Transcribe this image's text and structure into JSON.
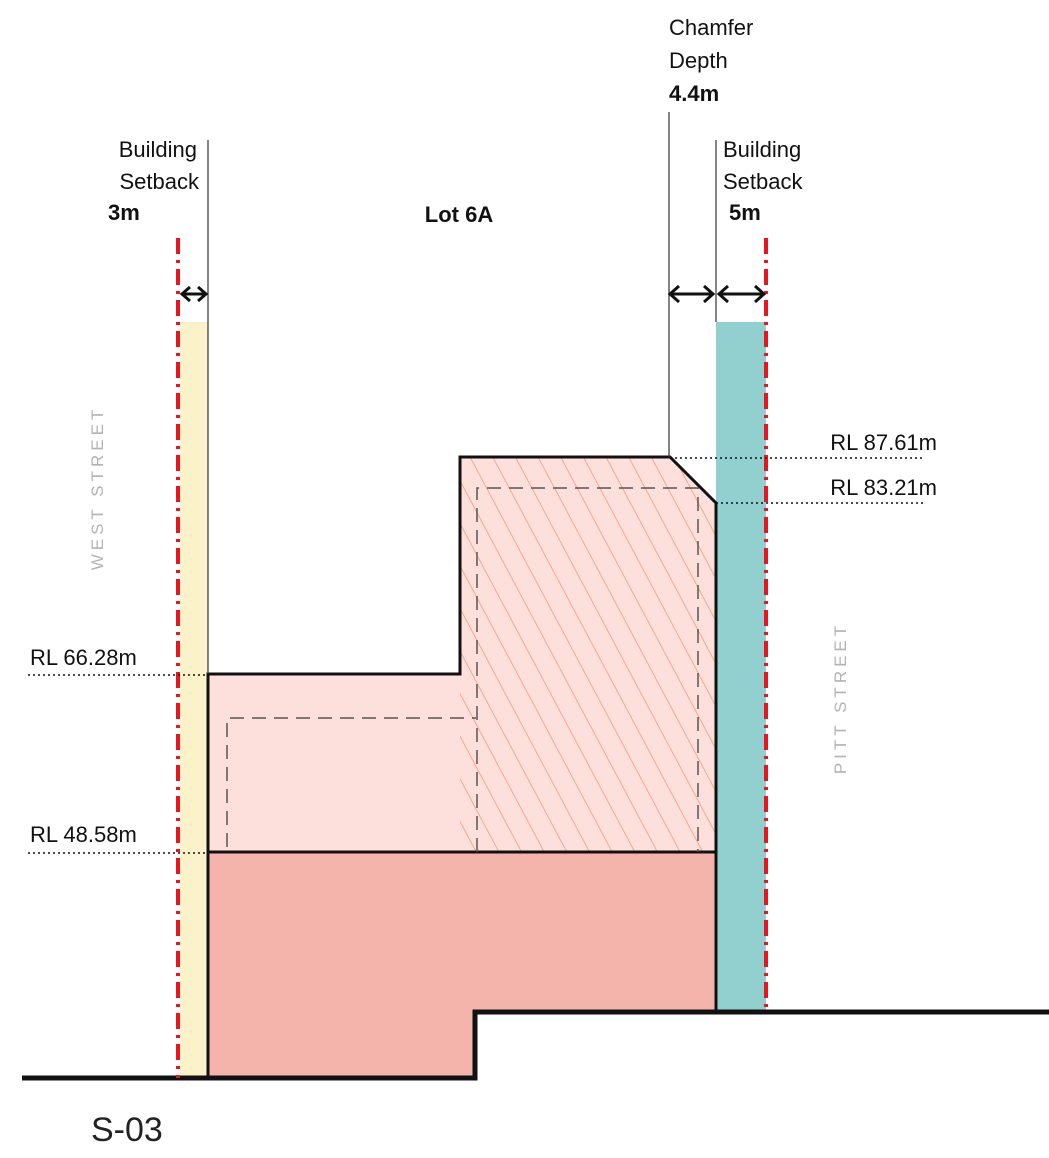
{
  "section": {
    "id": "S-03"
  },
  "lot": {
    "label": "Lot 6A"
  },
  "setbacks": {
    "west": {
      "line1": "Building",
      "line2": "Setback",
      "value": "3m"
    },
    "east": {
      "line1": "Building",
      "line2": "Setback",
      "value": "5m"
    }
  },
  "chamfer": {
    "line1": "Chamfer",
    "line2": "Depth",
    "value": "4.4m"
  },
  "levels": [
    {
      "label": "RL 87.61m"
    },
    {
      "label": "RL 83.21m"
    },
    {
      "label": "RL 66.28m"
    },
    {
      "label": "RL 48.58m"
    }
  ],
  "streets": {
    "west": "WEST STREET",
    "east": "PITT STREET"
  },
  "colors": {
    "west_setback_fill": "#fbf2c9",
    "east_setback_fill": "#92cfcf",
    "upper_massing": "#fde0dc",
    "podium": "#f4b4ab",
    "hatch": "#f4a88a",
    "boundary_line": "#e8141e",
    "outline": "#111111"
  }
}
